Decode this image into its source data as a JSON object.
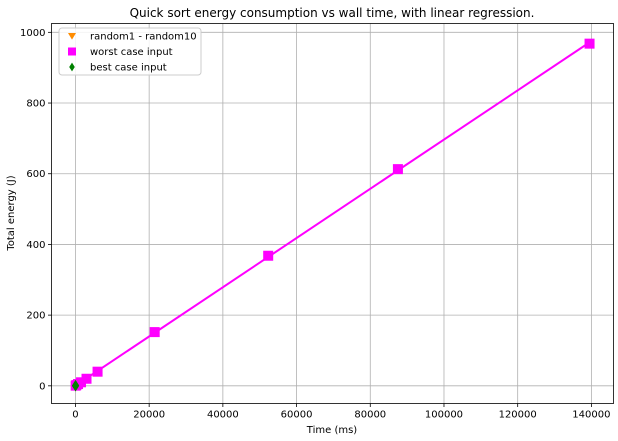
{
  "chart_data": {
    "type": "scatter",
    "title": "Quick sort energy consumption vs wall time, with linear regression.",
    "xlabel": "Time (ms)",
    "ylabel": "Total energy (J)",
    "xlim": [
      -6500,
      146000
    ],
    "ylim": [
      -50,
      1025
    ],
    "xticks": [
      0,
      20000,
      40000,
      60000,
      80000,
      100000,
      120000,
      140000
    ],
    "yticks": [
      0,
      200,
      400,
      600,
      800,
      1000
    ],
    "grid": true,
    "legend_position": "top-left",
    "series": [
      {
        "name": "random1 - random10",
        "marker": "triangle-down",
        "color": "#ff8c00",
        "x": [
          20,
          35,
          50,
          65,
          80,
          95,
          110,
          130,
          150,
          170
        ],
        "y": [
          0.1,
          0.2,
          0.3,
          0.4,
          0.5,
          0.6,
          0.7,
          0.8,
          0.9,
          1.0
        ],
        "regression": {
          "color": "#d62728",
          "x": [
            0,
            200
          ]
        }
      },
      {
        "name": "worst case input",
        "marker": "square",
        "color": "#ff00ff",
        "x": [
          50,
          250,
          700,
          1500,
          3000,
          6000,
          21500,
          52300,
          87500,
          139500
        ],
        "y": [
          0.5,
          2,
          5,
          10,
          20,
          40,
          152,
          368,
          613,
          968
        ],
        "regression": {
          "color": "#ff00ff",
          "x": [
            50,
            139500
          ]
        }
      },
      {
        "name": "best case input",
        "marker": "diamond",
        "color": "#008000",
        "x": [
          5,
          10,
          20,
          30,
          40,
          60
        ],
        "y": [
          0.05,
          0.1,
          0.2,
          0.3,
          0.4,
          0.5
        ],
        "regression": {
          "color": "#008000",
          "x": [
            0,
            60
          ]
        }
      }
    ]
  }
}
